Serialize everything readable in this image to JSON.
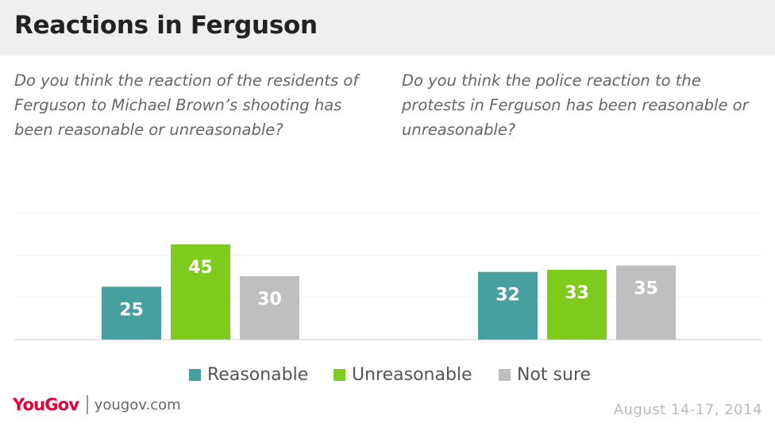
{
  "title": "Reactions in Ferguson",
  "colors": {
    "reasonable": "#46a0a0",
    "unreasonable": "#80cc1e",
    "not_sure": "#bfbfbf",
    "brand": "#e4003b"
  },
  "footer": {
    "logo": "YouGov",
    "site": "yougov.com",
    "date": "August 14-17, 2014"
  },
  "chart_data": [
    {
      "type": "bar",
      "title": "Do you think the reaction of the residents of Ferguson to Michael Brown’s shooting has been reasonable or unreasonable?",
      "categories": [
        "Reasonable",
        "Unreasonable",
        "Not sure"
      ],
      "values": [
        25,
        45,
        30
      ],
      "ylim": [
        0,
        60
      ],
      "grid": true
    },
    {
      "type": "bar",
      "title": "Do you think the police reaction to the protests in Ferguson has been reasonable or unreasonable?",
      "categories": [
        "Reasonable",
        "Unreasonable",
        "Not sure"
      ],
      "values": [
        32,
        33,
        35
      ],
      "ylim": [
        0,
        60
      ],
      "grid": true
    }
  ],
  "legend": [
    {
      "label": "Reasonable",
      "color_key": "reasonable"
    },
    {
      "label": "Unreasonable",
      "color_key": "unreasonable"
    },
    {
      "label": "Not sure",
      "color_key": "not_sure"
    }
  ]
}
